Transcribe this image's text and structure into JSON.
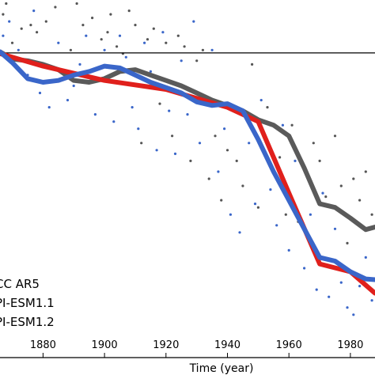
{
  "chart_data": {
    "type": "line",
    "title": "",
    "xlabel": "Time (year)",
    "ylabel": "",
    "xlim": [
      1866,
      1988
    ],
    "ylim": [
      0,
      1
    ],
    "x_ticks": [
      1880,
      1900,
      1920,
      1940,
      1960,
      1980
    ],
    "reference_line_y": 0.852,
    "grid": false,
    "legend": {
      "placement": "bottom-left",
      "entries": [
        "CC AR5",
        "PI-ESM1.1",
        "PI-ESM1.2"
      ]
    },
    "series": [
      {
        "name": "CC AR5",
        "color": "#e0201c",
        "x": [
          1866,
          1880,
          1900,
          1920,
          1940,
          1950,
          1960,
          1970,
          1980,
          1988
        ],
        "y": [
          0.85,
          0.815,
          0.775,
          0.75,
          0.7,
          0.66,
          0.46,
          0.262,
          0.24,
          0.18
        ]
      },
      {
        "name": "PI-ESM1.1",
        "color": "#5a5a5a",
        "x": [
          1866,
          1870,
          1875,
          1880,
          1885,
          1890,
          1895,
          1900,
          1905,
          1910,
          1915,
          1920,
          1925,
          1930,
          1935,
          1940,
          1945,
          1950,
          1955,
          1960,
          1965,
          1970,
          1975,
          1980,
          1985,
          1988
        ],
        "y": [
          0.855,
          0.835,
          0.83,
          0.82,
          0.805,
          0.775,
          0.77,
          0.78,
          0.8,
          0.805,
          0.79,
          0.775,
          0.76,
          0.74,
          0.72,
          0.705,
          0.69,
          0.665,
          0.65,
          0.62,
          0.53,
          0.43,
          0.42,
          0.39,
          0.358,
          0.365
        ]
      },
      {
        "name": "PI-ESM1.2",
        "color": "#3a66c9",
        "x": [
          1866,
          1870,
          1875,
          1880,
          1885,
          1890,
          1895,
          1900,
          1905,
          1910,
          1915,
          1920,
          1925,
          1930,
          1935,
          1940,
          1945,
          1950,
          1955,
          1960,
          1965,
          1970,
          1975,
          1980,
          1985,
          1988
        ],
        "y": [
          0.855,
          0.825,
          0.78,
          0.77,
          0.775,
          0.79,
          0.8,
          0.815,
          0.81,
          0.79,
          0.77,
          0.755,
          0.74,
          0.715,
          0.705,
          0.71,
          0.69,
          0.61,
          0.52,
          0.44,
          0.36,
          0.28,
          0.27,
          0.24,
          0.22,
          0.218
        ]
      }
    ],
    "scatter": [
      {
        "color": "#555555",
        "points": [
          [
            1867,
            0.96
          ],
          [
            1868,
            0.99
          ],
          [
            1870,
            0.88
          ],
          [
            1873,
            0.92
          ],
          [
            1876,
            0.93
          ],
          [
            1878,
            0.91
          ],
          [
            1881,
            0.94
          ],
          [
            1884,
            0.98
          ],
          [
            1887,
            0.78
          ],
          [
            1889,
            0.86
          ],
          [
            1891,
            0.99
          ],
          [
            1893,
            0.93
          ],
          [
            1896,
            0.95
          ],
          [
            1899,
            0.89
          ],
          [
            1901,
            0.91
          ],
          [
            1902,
            0.96
          ],
          [
            1904,
            0.87
          ],
          [
            1906,
            0.85
          ],
          [
            1908,
            0.97
          ],
          [
            1910,
            0.93
          ],
          [
            1912,
            0.6
          ],
          [
            1914,
            0.89
          ],
          [
            1916,
            0.92
          ],
          [
            1918,
            0.71
          ],
          [
            1920,
            0.88
          ],
          [
            1922,
            0.62
          ],
          [
            1924,
            0.9
          ],
          [
            1926,
            0.87
          ],
          [
            1928,
            0.55
          ],
          [
            1930,
            0.83
          ],
          [
            1932,
            0.86
          ],
          [
            1934,
            0.5
          ],
          [
            1936,
            0.62
          ],
          [
            1938,
            0.44
          ],
          [
            1940,
            0.58
          ],
          [
            1943,
            0.55
          ],
          [
            1945,
            0.48
          ],
          [
            1948,
            0.82
          ],
          [
            1950,
            0.42
          ],
          [
            1953,
            0.7
          ],
          [
            1955,
            0.52
          ],
          [
            1957,
            0.56
          ],
          [
            1959,
            0.4
          ],
          [
            1961,
            0.65
          ],
          [
            1963,
            0.38
          ],
          [
            1966,
            0.35
          ],
          [
            1968,
            0.6
          ],
          [
            1970,
            0.55
          ],
          [
            1972,
            0.45
          ],
          [
            1975,
            0.62
          ],
          [
            1977,
            0.48
          ],
          [
            1979,
            0.32
          ],
          [
            1981,
            0.5
          ],
          [
            1983,
            0.44
          ],
          [
            1985,
            0.52
          ],
          [
            1987,
            0.4
          ]
        ]
      },
      {
        "color": "#3a66c9",
        "points": [
          [
            1867,
            0.9
          ],
          [
            1869,
            0.94
          ],
          [
            1872,
            0.86
          ],
          [
            1875,
            0.79
          ],
          [
            1877,
            0.97
          ],
          [
            1879,
            0.74
          ],
          [
            1882,
            0.7
          ],
          [
            1885,
            0.88
          ],
          [
            1888,
            0.72
          ],
          [
            1890,
            0.76
          ],
          [
            1892,
            0.82
          ],
          [
            1894,
            0.9
          ],
          [
            1897,
            0.68
          ],
          [
            1900,
            0.86
          ],
          [
            1903,
            0.66
          ],
          [
            1905,
            0.9
          ],
          [
            1907,
            0.84
          ],
          [
            1909,
            0.7
          ],
          [
            1911,
            0.64
          ],
          [
            1913,
            0.88
          ],
          [
            1915,
            0.8
          ],
          [
            1917,
            0.58
          ],
          [
            1919,
            0.91
          ],
          [
            1921,
            0.69
          ],
          [
            1923,
            0.57
          ],
          [
            1925,
            0.83
          ],
          [
            1927,
            0.68
          ],
          [
            1929,
            0.94
          ],
          [
            1931,
            0.6
          ],
          [
            1933,
            0.73
          ],
          [
            1935,
            0.86
          ],
          [
            1937,
            0.52
          ],
          [
            1939,
            0.64
          ],
          [
            1941,
            0.4
          ],
          [
            1944,
            0.35
          ],
          [
            1947,
            0.6
          ],
          [
            1949,
            0.43
          ],
          [
            1951,
            0.72
          ],
          [
            1954,
            0.47
          ],
          [
            1956,
            0.37
          ],
          [
            1958,
            0.65
          ],
          [
            1960,
            0.3
          ],
          [
            1962,
            0.55
          ],
          [
            1965,
            0.25
          ],
          [
            1967,
            0.4
          ],
          [
            1969,
            0.19
          ],
          [
            1971,
            0.46
          ],
          [
            1973,
            0.17
          ],
          [
            1975,
            0.36
          ],
          [
            1977,
            0.21
          ],
          [
            1979,
            0.14
          ],
          [
            1981,
            0.12
          ],
          [
            1983,
            0.2
          ],
          [
            1985,
            0.28
          ],
          [
            1987,
            0.16
          ]
        ]
      }
    ]
  }
}
